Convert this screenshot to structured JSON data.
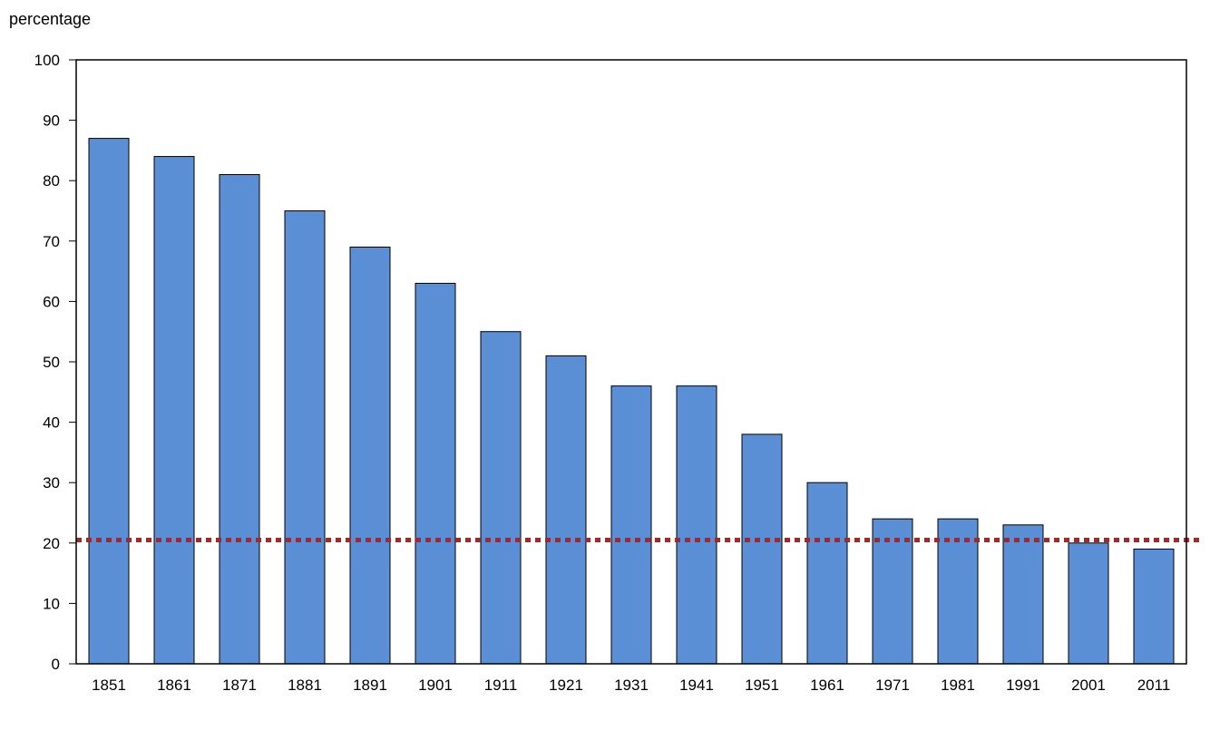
{
  "chart_data": {
    "type": "bar",
    "title": "",
    "ylabel": "percentage",
    "xlabel": "",
    "categories": [
      "1851",
      "1861",
      "1871",
      "1881",
      "1891",
      "1901",
      "1911",
      "1921",
      "1931",
      "1941",
      "1951",
      "1961",
      "1971",
      "1981",
      "1991",
      "2001",
      "2011"
    ],
    "values": [
      87,
      84,
      81,
      75,
      69,
      63,
      55,
      51,
      46,
      46,
      38,
      30,
      24,
      24,
      23,
      20,
      19
    ],
    "ylim": [
      0,
      100
    ],
    "yticks": [
      0,
      10,
      20,
      30,
      40,
      50,
      60,
      70,
      80,
      90,
      100
    ],
    "reference_line": {
      "value": 20.5,
      "style": "dotted",
      "color": "#b22222"
    },
    "grid": false,
    "legend": "none",
    "colors": {
      "bar_fill": "#5b8fd5",
      "bar_stroke": "#000000",
      "axis": "#000000"
    }
  }
}
